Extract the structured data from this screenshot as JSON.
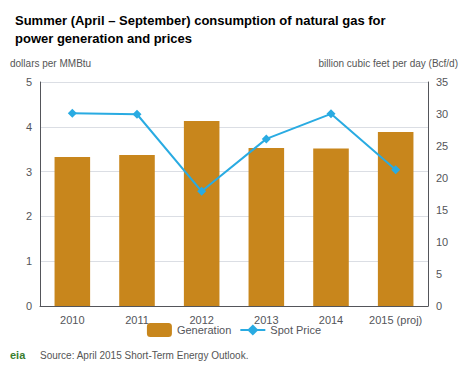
{
  "chart_data": {
    "type": "bar",
    "title": "Summer (April – September) consumption of natural gas for\npower generation and prices",
    "ylabel": "dollars per MMBtu",
    "y2label": "billion cubic feet per day (Bcf/d)",
    "annotations": [
      "Source: April 2015 Short-Term Energy Outlook.",
      "eia"
    ],
    "categories": [
      "2010",
      "2011",
      "2012",
      "2013",
      "2014",
      "2015 (proj)"
    ],
    "series": [
      {
        "name": "Generation",
        "type": "bar",
        "axis": "y2",
        "color": "#C8861C",
        "values": [
          23.3,
          23.6,
          28.9,
          24.7,
          24.6,
          27.2
        ]
      },
      {
        "name": "Spot Price",
        "type": "line",
        "color": "#29ABE2",
        "marker": "diamond",
        "values": [
          4.3,
          4.28,
          2.56,
          3.73,
          4.29,
          3.04
        ]
      }
    ],
    "ylim": [
      0,
      5
    ],
    "yticks": [
      0,
      1,
      2,
      3,
      4,
      5
    ],
    "y2lim": [
      0,
      35
    ],
    "y2ticks": [
      0,
      5,
      10,
      15,
      20,
      25,
      30,
      35
    ],
    "grid": true,
    "legend": "bottom"
  }
}
